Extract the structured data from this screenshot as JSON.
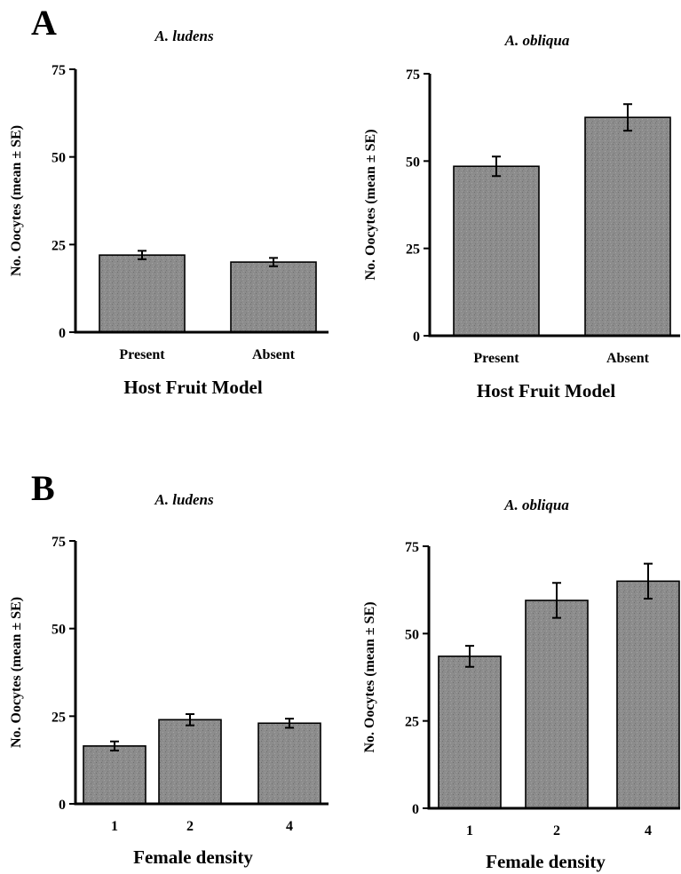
{
  "panels": [
    {
      "letter": "A"
    },
    {
      "letter": "B"
    }
  ],
  "colors": {
    "bar_fill": "#8c8c8c",
    "axis": "#000000"
  },
  "chart_data": [
    {
      "type": "bar",
      "panel": "A",
      "title": "A. ludens",
      "ylabel": "No. Oocytes (mean ± SE)",
      "xlabel": "Host Fruit Model",
      "ylim": [
        0,
        75
      ],
      "yticks": [
        0,
        25,
        50,
        75
      ],
      "categories": [
        "Present",
        "Absent"
      ],
      "values": [
        22,
        20
      ],
      "errors": [
        1.2,
        1.2
      ]
    },
    {
      "type": "bar",
      "panel": "A",
      "title": "A. obliqua",
      "ylabel": "No. Oocytes (mean ± SE)",
      "xlabel": "Host Fruit Model",
      "ylim": [
        0,
        75
      ],
      "yticks": [
        0,
        25,
        50,
        75
      ],
      "categories": [
        "Present",
        "Absent"
      ],
      "values": [
        48.5,
        62.5
      ],
      "errors": [
        2.8,
        3.8
      ]
    },
    {
      "type": "bar",
      "panel": "B",
      "title": "A. ludens",
      "ylabel": "No. Oocytes (mean ± SE)",
      "xlabel": "Female density",
      "ylim": [
        0,
        75
      ],
      "yticks": [
        0,
        25,
        50,
        75
      ],
      "categories": [
        "1",
        "2",
        "4"
      ],
      "values": [
        16.5,
        24,
        23
      ],
      "errors": [
        1.3,
        1.6,
        1.3
      ]
    },
    {
      "type": "bar",
      "panel": "B",
      "title": "A. obliqua",
      "ylabel": "No. Oocytes (mean ± SE)",
      "xlabel": "Female density",
      "ylim": [
        0,
        75
      ],
      "yticks": [
        0,
        25,
        50,
        75
      ],
      "categories": [
        "1",
        "2",
        "4"
      ],
      "values": [
        43.5,
        59.5,
        65
      ],
      "errors": [
        3,
        5,
        5
      ]
    }
  ]
}
